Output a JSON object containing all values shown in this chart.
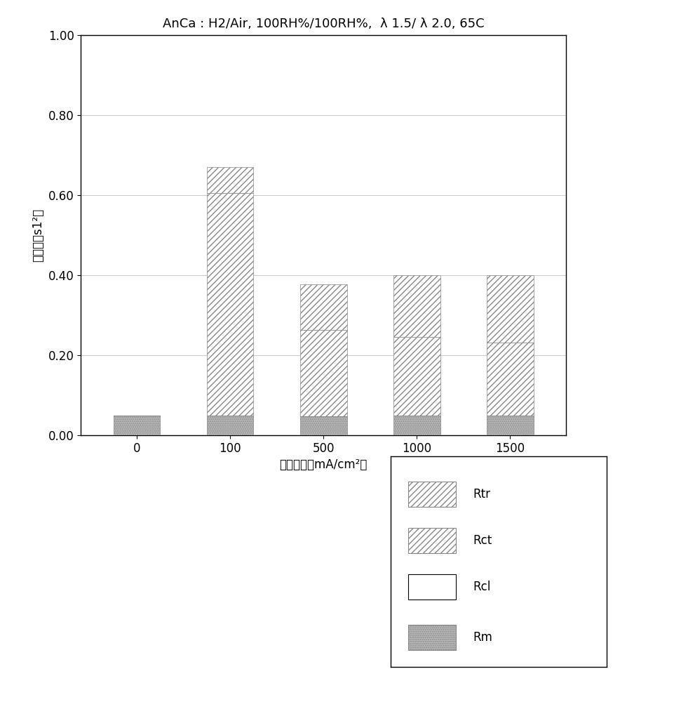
{
  "title": "AnCa : H2/Air, 100RH%/100RH%,  λ 1.5/ λ 2.0, 65C",
  "xlabel": "电流密度［mA/cm²］",
  "ylabel": "电阴（阔s1²）",
  "categories": [
    "0",
    "100",
    "500",
    "1000",
    "1500"
  ],
  "Rm": [
    0.05,
    0.05,
    0.048,
    0.05,
    0.05
  ],
  "Rcl": [
    0.0,
    0.0,
    0.0,
    0.0,
    0.0
  ],
  "Rct": [
    0.0,
    0.555,
    0.215,
    0.195,
    0.182
  ],
  "Rtr": [
    0.0,
    0.065,
    0.115,
    0.155,
    0.168
  ],
  "ylim": [
    0.0,
    1.0
  ],
  "yticks": [
    0.0,
    0.2,
    0.4,
    0.6,
    0.8,
    1.0
  ],
  "bar_width": 0.5,
  "color_Rm": "#bbbbbb",
  "color_Rcl": "#ffffff",
  "color_Rct": "#ffffff",
  "color_Rtr": "#ffffff",
  "hatch_Rm": "......",
  "hatch_Rcl": "",
  "hatch_Rct": "////",
  "hatch_Rtr": "////",
  "legend_labels": [
    "Rtr",
    "Rct",
    "Rcl",
    "Rm"
  ],
  "title_fontsize": 13,
  "label_fontsize": 12,
  "tick_fontsize": 12,
  "legend_fontsize": 12,
  "background_color": "#ffffff",
  "grid_color": "#cccccc"
}
